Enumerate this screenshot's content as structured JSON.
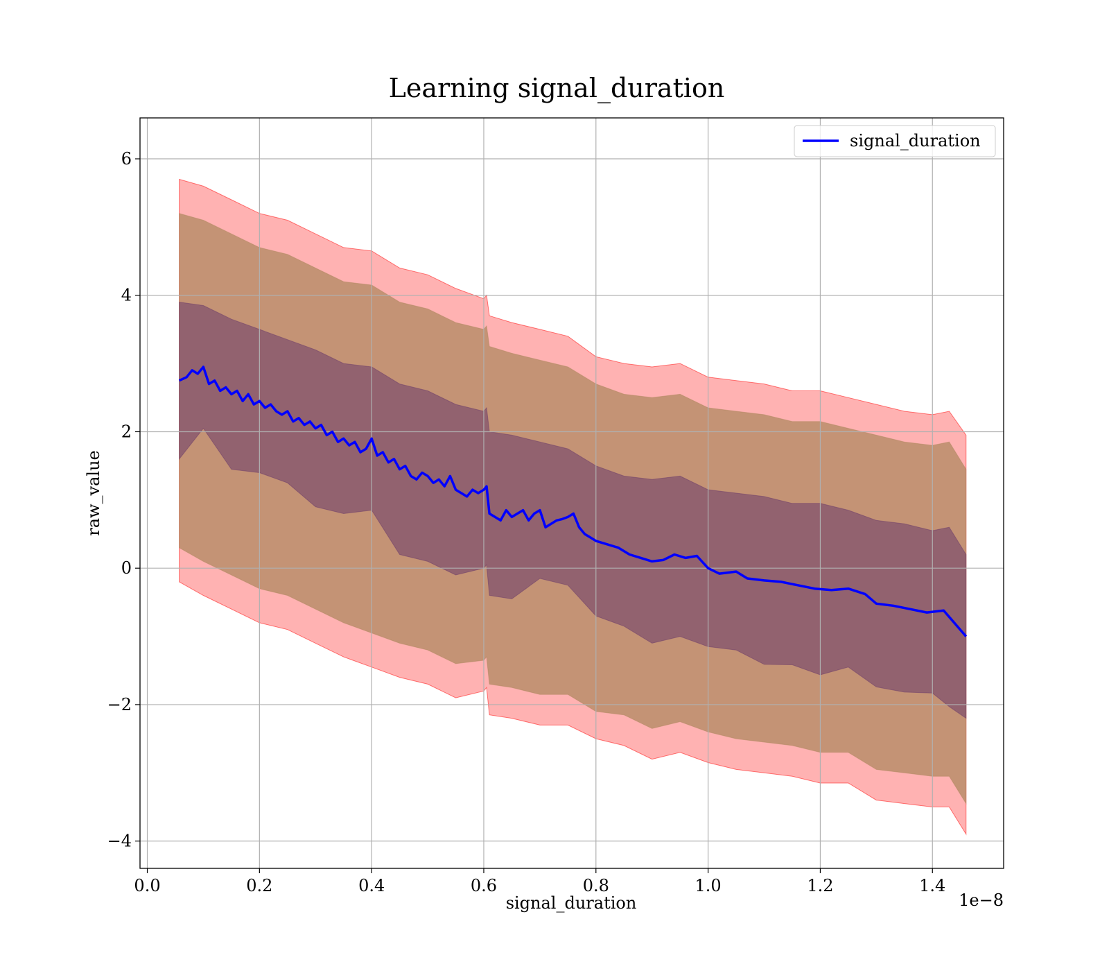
{
  "chart_data": {
    "type": "line",
    "title": "Learning signal_duration",
    "xlabel": "signal_duration",
    "ylabel": "raw_value",
    "x_offset_label": "1e−8",
    "xlim": [
      -0.013,
      1.527
    ],
    "ylim": [
      -4.4,
      6.6
    ],
    "x_ticks": [
      0.0,
      0.2,
      0.4,
      0.6,
      0.8,
      1.0,
      1.2,
      1.4
    ],
    "x_tick_labels": [
      "0.0",
      "0.2",
      "0.4",
      "0.6",
      "0.8",
      "1.0",
      "1.2",
      "1.4"
    ],
    "y_ticks": [
      -4,
      -2,
      0,
      2,
      4,
      6
    ],
    "y_tick_labels": [
      "−4",
      "−2",
      "0",
      "2",
      "4",
      "6"
    ],
    "grid": true,
    "legend": {
      "position": "top-right",
      "entries": [
        "signal_duration"
      ]
    },
    "series": [
      {
        "name": "signal_duration",
        "color": "#0000ff",
        "x": [
          0.057,
          0.07,
          0.08,
          0.09,
          0.1,
          0.11,
          0.12,
          0.13,
          0.14,
          0.15,
          0.16,
          0.17,
          0.18,
          0.19,
          0.2,
          0.21,
          0.22,
          0.23,
          0.24,
          0.25,
          0.26,
          0.27,
          0.28,
          0.29,
          0.3,
          0.31,
          0.32,
          0.33,
          0.34,
          0.35,
          0.36,
          0.37,
          0.38,
          0.39,
          0.4,
          0.41,
          0.42,
          0.43,
          0.44,
          0.45,
          0.46,
          0.47,
          0.48,
          0.49,
          0.5,
          0.51,
          0.52,
          0.53,
          0.54,
          0.55,
          0.56,
          0.57,
          0.58,
          0.59,
          0.6,
          0.605,
          0.61,
          0.62,
          0.63,
          0.64,
          0.65,
          0.66,
          0.67,
          0.68,
          0.69,
          0.7,
          0.71,
          0.72,
          0.73,
          0.74,
          0.75,
          0.76,
          0.77,
          0.78,
          0.79,
          0.8,
          0.82,
          0.84,
          0.86,
          0.88,
          0.9,
          0.92,
          0.94,
          0.96,
          0.98,
          1.0,
          1.02,
          1.05,
          1.07,
          1.1,
          1.13,
          1.16,
          1.19,
          1.22,
          1.25,
          1.28,
          1.3,
          1.33,
          1.36,
          1.39,
          1.42,
          1.46
        ],
        "values": [
          2.75,
          2.8,
          2.9,
          2.85,
          2.95,
          2.7,
          2.75,
          2.6,
          2.65,
          2.55,
          2.6,
          2.45,
          2.55,
          2.4,
          2.45,
          2.35,
          2.4,
          2.3,
          2.25,
          2.3,
          2.15,
          2.2,
          2.1,
          2.15,
          2.05,
          2.1,
          1.95,
          2.0,
          1.85,
          1.9,
          1.8,
          1.85,
          1.7,
          1.75,
          1.9,
          1.65,
          1.7,
          1.55,
          1.6,
          1.45,
          1.5,
          1.35,
          1.3,
          1.4,
          1.35,
          1.25,
          1.3,
          1.2,
          1.35,
          1.15,
          1.1,
          1.05,
          1.15,
          1.1,
          1.15,
          1.2,
          0.8,
          0.75,
          0.7,
          0.85,
          0.75,
          0.8,
          0.85,
          0.7,
          0.8,
          0.85,
          0.6,
          0.65,
          0.7,
          0.72,
          0.75,
          0.8,
          0.6,
          0.5,
          0.45,
          0.4,
          0.35,
          0.3,
          0.2,
          0.15,
          0.1,
          0.12,
          0.2,
          0.15,
          0.18,
          0.0,
          -0.08,
          -0.05,
          -0.15,
          -0.18,
          -0.2,
          -0.25,
          -0.3,
          -0.32,
          -0.3,
          -0.38,
          -0.52,
          -0.55,
          -0.6,
          -0.65,
          -0.62,
          -1.0
        ]
      }
    ],
    "bands": [
      {
        "color": "#ff0000",
        "opacity": 0.3,
        "x": [
          0.057,
          0.1,
          0.15,
          0.2,
          0.25,
          0.3,
          0.35,
          0.4,
          0.45,
          0.5,
          0.55,
          0.6,
          0.605,
          0.61,
          0.65,
          0.7,
          0.75,
          0.8,
          0.85,
          0.9,
          0.95,
          1.0,
          1.05,
          1.1,
          1.15,
          1.2,
          1.25,
          1.3,
          1.35,
          1.4,
          1.43,
          1.46
        ],
        "upper": [
          5.7,
          5.6,
          5.4,
          5.2,
          5.1,
          4.9,
          4.7,
          4.65,
          4.4,
          4.3,
          4.1,
          3.95,
          4.0,
          3.7,
          3.6,
          3.5,
          3.4,
          3.1,
          3.0,
          2.95,
          3.0,
          2.8,
          2.75,
          2.7,
          2.6,
          2.6,
          2.5,
          2.4,
          2.3,
          2.25,
          2.3,
          1.95
        ],
        "lower": [
          -0.2,
          -0.4,
          -0.6,
          -0.8,
          -0.9,
          -1.1,
          -1.3,
          -1.45,
          -1.6,
          -1.7,
          -1.9,
          -1.8,
          -1.75,
          -2.15,
          -2.2,
          -2.3,
          -2.3,
          -2.5,
          -2.6,
          -2.8,
          -2.7,
          -2.85,
          -2.95,
          -3.0,
          -3.05,
          -3.15,
          -3.15,
          -3.4,
          -3.45,
          -3.5,
          -3.5,
          -3.9
        ]
      },
      {
        "color": "#b08860",
        "opacity": 0.75,
        "x": [
          0.057,
          0.1,
          0.15,
          0.2,
          0.25,
          0.3,
          0.35,
          0.4,
          0.45,
          0.5,
          0.55,
          0.6,
          0.605,
          0.61,
          0.65,
          0.7,
          0.75,
          0.8,
          0.85,
          0.9,
          0.95,
          1.0,
          1.05,
          1.1,
          1.15,
          1.2,
          1.25,
          1.3,
          1.35,
          1.4,
          1.43,
          1.46
        ],
        "upper": [
          5.2,
          5.1,
          4.9,
          4.7,
          4.6,
          4.4,
          4.2,
          4.15,
          3.9,
          3.8,
          3.6,
          3.5,
          3.55,
          3.25,
          3.15,
          3.05,
          2.95,
          2.7,
          2.55,
          2.5,
          2.55,
          2.35,
          2.3,
          2.25,
          2.15,
          2.15,
          2.05,
          1.95,
          1.85,
          1.8,
          1.85,
          1.45
        ],
        "lower": [
          0.3,
          0.1,
          -0.1,
          -0.3,
          -0.4,
          -0.6,
          -0.8,
          -0.95,
          -1.1,
          -1.2,
          -1.4,
          -1.35,
          -1.3,
          -1.7,
          -1.75,
          -1.85,
          -1.85,
          -2.1,
          -2.15,
          -2.35,
          -2.25,
          -2.4,
          -2.5,
          -2.55,
          -2.6,
          -2.7,
          -2.7,
          -2.95,
          -3.0,
          -3.05,
          -3.05,
          -3.45
        ]
      },
      {
        "color": "#6a3a6a",
        "opacity": 0.55,
        "x": [
          0.057,
          0.1,
          0.15,
          0.2,
          0.25,
          0.3,
          0.35,
          0.4,
          0.45,
          0.5,
          0.55,
          0.6,
          0.605,
          0.61,
          0.65,
          0.7,
          0.75,
          0.8,
          0.85,
          0.9,
          0.95,
          1.0,
          1.05,
          1.1,
          1.15,
          1.2,
          1.25,
          1.3,
          1.35,
          1.4,
          1.43,
          1.46
        ],
        "upper": [
          3.9,
          3.85,
          3.65,
          3.5,
          3.35,
          3.2,
          3.0,
          2.95,
          2.7,
          2.6,
          2.4,
          2.3,
          2.35,
          2.0,
          1.95,
          1.85,
          1.75,
          1.5,
          1.35,
          1.3,
          1.35,
          1.15,
          1.1,
          1.05,
          0.95,
          0.95,
          0.85,
          0.7,
          0.65,
          0.55,
          0.6,
          0.2
        ]
      }
    ]
  }
}
